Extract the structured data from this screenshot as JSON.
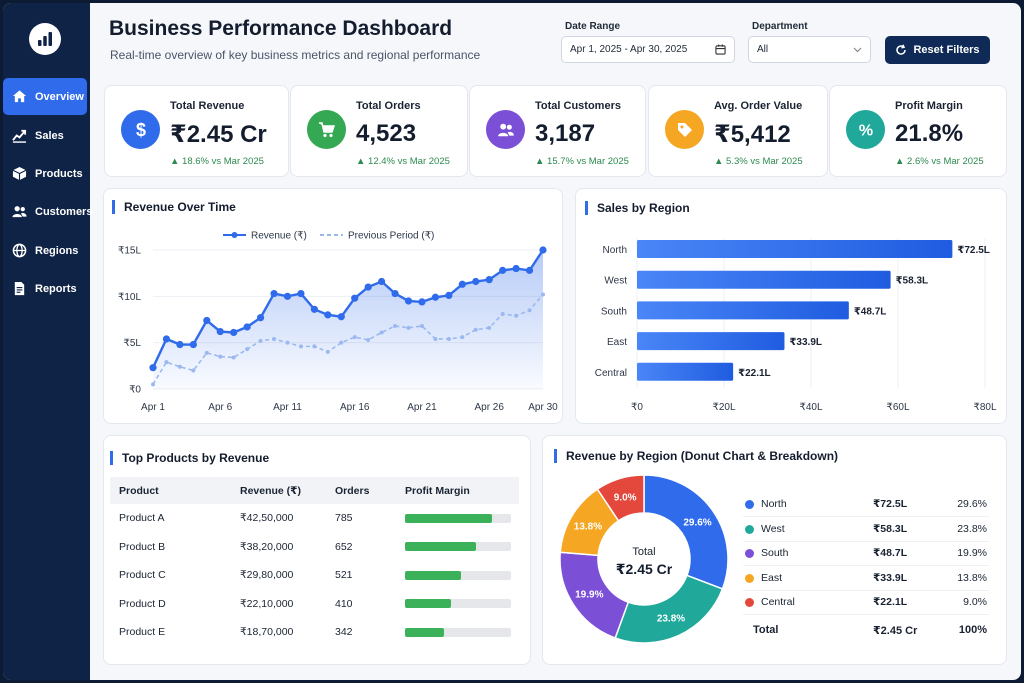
{
  "header": {
    "title": "Business Performance Dashboard",
    "subtitle": "Real-time overview of key business metrics and regional performance"
  },
  "filters": {
    "date_range_label": "Date Range",
    "date_range_value": "Apr 1, 2025 - Apr 30, 2025",
    "department_label": "Department",
    "department_value": "All",
    "reset_label": "Reset Filters"
  },
  "sidebar": {
    "items": [
      {
        "label": "Overview",
        "icon": "home-icon",
        "active": true
      },
      {
        "label": "Sales",
        "icon": "trend-icon",
        "active": false
      },
      {
        "label": "Products",
        "icon": "box-icon",
        "active": false
      },
      {
        "label": "Customers",
        "icon": "users-icon",
        "active": false
      },
      {
        "label": "Regions",
        "icon": "globe-icon",
        "active": false
      },
      {
        "label": "Reports",
        "icon": "document-icon",
        "active": false
      }
    ]
  },
  "kpis": [
    {
      "label": "Total Revenue",
      "value": "₹2.45 Cr",
      "change": "18.6% vs Mar 2025",
      "icon": "rupee-icon",
      "color": "#2f6bea"
    },
    {
      "label": "Total Orders",
      "value": "4,523",
      "change": "12.4% vs Mar 2025",
      "icon": "cart-icon",
      "color": "#34a853"
    },
    {
      "label": "Total Customers",
      "value": "3,187",
      "change": "15.7% vs Mar 2025",
      "icon": "users-icon",
      "color": "#7b4fd6"
    },
    {
      "label": "Avg. Order Value",
      "value": "₹5,412",
      "change": "5.3% vs Mar 2025",
      "icon": "tag-icon",
      "color": "#f5a623"
    },
    {
      "label": "Profit Margin",
      "value": "21.8%",
      "change": "2.6% vs Mar 2025",
      "icon": "percent-icon",
      "color": "#20a89a"
    }
  ],
  "revenue_chart": {
    "title": "Revenue Over Time"
  },
  "region_chart": {
    "title": "Sales by Region"
  },
  "products": {
    "title": "Top Products by Revenue",
    "columns": [
      "Product",
      "Revenue (₹)",
      "Orders",
      "Profit Margin"
    ],
    "rows": [
      {
        "product": "Product A",
        "revenue": "₹42,50,000",
        "orders": "785",
        "margin": 0.82
      },
      {
        "product": "Product B",
        "revenue": "₹38,20,000",
        "orders": "652",
        "margin": 0.67
      },
      {
        "product": "Product C",
        "revenue": "₹29,80,000",
        "orders": "521",
        "margin": 0.53
      },
      {
        "product": "Product D",
        "revenue": "₹22,10,000",
        "orders": "410",
        "margin": 0.43
      },
      {
        "product": "Product E",
        "revenue": "₹18,70,000",
        "orders": "342",
        "margin": 0.37
      }
    ]
  },
  "donut": {
    "title": "Revenue by Region (Donut Chart & Breakdown)",
    "center_label": "Total",
    "center_value": "₹2.45 Cr",
    "total_label": "Total",
    "total_value": "₹2.45 Cr",
    "total_pct": "100%",
    "rows": [
      {
        "name": "North",
        "value": "₹72.5L",
        "pct": "29.6%",
        "color": "#2f6bea"
      },
      {
        "name": "West",
        "value": "₹58.3L",
        "pct": "23.8%",
        "color": "#20a89a"
      },
      {
        "name": "South",
        "value": "₹48.7L",
        "pct": "19.9%",
        "color": "#7b4fd6"
      },
      {
        "name": "East",
        "value": "₹33.9L",
        "pct": "13.8%",
        "color": "#f5a623"
      },
      {
        "name": "Central",
        "value": "₹22.1L",
        "pct": "9.0%",
        "color": "#e4473b"
      }
    ]
  },
  "chart_data": [
    {
      "type": "line",
      "title": "Revenue Over Time",
      "x": [
        1,
        2,
        3,
        4,
        5,
        6,
        7,
        8,
        9,
        10,
        11,
        12,
        13,
        14,
        15,
        16,
        17,
        18,
        19,
        20,
        21,
        22,
        23,
        24,
        25,
        26,
        27,
        28,
        29,
        30
      ],
      "x_tick_labels": [
        "Apr 1",
        "Apr 6",
        "Apr 11",
        "Apr 16",
        "Apr 21",
        "Apr 26",
        "Apr 30"
      ],
      "y_tick_labels": [
        "₹0",
        "₹5L",
        "₹10L",
        "₹15L"
      ],
      "ylim": [
        0,
        15
      ],
      "series": [
        {
          "name": "Revenue (₹)",
          "color": "#2f6bea",
          "values": [
            2.3,
            5.4,
            4.8,
            4.8,
            7.4,
            6.2,
            6.1,
            6.7,
            7.7,
            10.3,
            10.0,
            10.3,
            8.6,
            8.0,
            7.8,
            9.8,
            11.0,
            11.6,
            10.3,
            9.5,
            9.4,
            9.9,
            10.1,
            11.3,
            11.6,
            11.8,
            12.8,
            13.0,
            12.8,
            15.0
          ]
        },
        {
          "name": "Previous Period (₹)",
          "color": "#9bb8f0",
          "dashed": true,
          "values": [
            0.5,
            2.9,
            2.4,
            2.0,
            3.9,
            3.5,
            3.4,
            4.3,
            5.2,
            5.4,
            5.0,
            4.6,
            4.6,
            4.0,
            5.0,
            5.6,
            5.3,
            6.1,
            6.8,
            6.6,
            6.8,
            5.4,
            5.4,
            5.6,
            6.4,
            6.6,
            8.1,
            7.9,
            8.5,
            10.2
          ]
        }
      ]
    },
    {
      "type": "bar",
      "orientation": "horizontal",
      "title": "Sales by Region",
      "categories": [
        "North",
        "West",
        "South",
        "East",
        "Central"
      ],
      "values": [
        72.5,
        58.3,
        48.7,
        33.9,
        22.1
      ],
      "value_labels": [
        "₹72.5L",
        "₹58.3L",
        "₹48.7L",
        "₹33.9L",
        "₹22.1L"
      ],
      "x_tick_labels": [
        "₹0",
        "₹20L",
        "₹40L",
        "₹60L",
        "₹80L"
      ],
      "xlim": [
        0,
        80
      ],
      "color": "#2f6bea"
    },
    {
      "type": "pie",
      "title": "Revenue by Region (Donut Chart & Breakdown)",
      "categories": [
        "North",
        "West",
        "South",
        "East",
        "Central"
      ],
      "values": [
        29.6,
        23.8,
        19.9,
        13.8,
        9.0
      ],
      "labels": [
        "29.6%",
        "23.8%",
        "19.9%",
        "13.8%",
        "9.0%"
      ],
      "colors": [
        "#2f6bea",
        "#20a89a",
        "#7b4fd6",
        "#f5a623",
        "#e4473b"
      ]
    }
  ]
}
